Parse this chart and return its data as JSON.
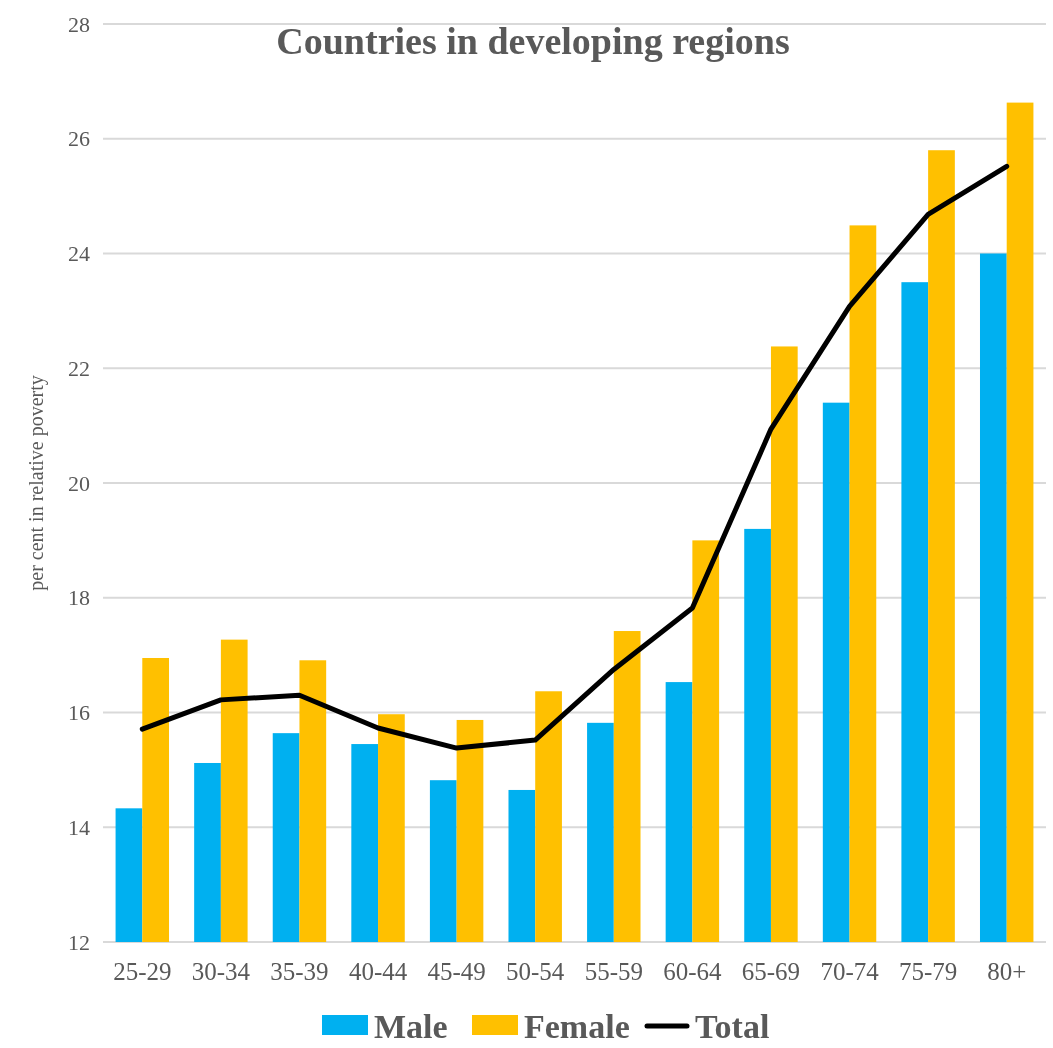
{
  "chart_data": {
    "type": "bar",
    "title": "Countries in developing regions",
    "ylabel": "per cent in relative poverty",
    "categories": [
      "25-29",
      "30-34",
      "35-39",
      "40-44",
      "45-49",
      "50-54",
      "55-59",
      "60-64",
      "65-69",
      "70-74",
      "75-79",
      "80+"
    ],
    "series": [
      {
        "name": "Male",
        "color": "#00b0f0",
        "values": [
          14.33,
          15.12,
          15.64,
          15.45,
          14.82,
          14.65,
          15.82,
          16.53,
          19.2,
          21.4,
          23.5,
          24.0
        ]
      },
      {
        "name": "Female",
        "color": "#ffc000",
        "values": [
          16.95,
          17.27,
          16.91,
          15.97,
          15.87,
          16.37,
          17.42,
          19.0,
          22.38,
          24.49,
          25.8,
          26.63
        ]
      },
      {
        "name": "Total",
        "type": "line",
        "color": "#000000",
        "values": [
          15.71,
          16.22,
          16.3,
          15.73,
          15.38,
          15.52,
          16.75,
          17.82,
          20.94,
          23.08,
          24.68,
          25.52
        ]
      }
    ],
    "ylim": [
      12,
      28
    ],
    "yticks": [
      12,
      14,
      16,
      18,
      20,
      22,
      24,
      26,
      28
    ],
    "grid": "y",
    "legend": "bottom"
  }
}
